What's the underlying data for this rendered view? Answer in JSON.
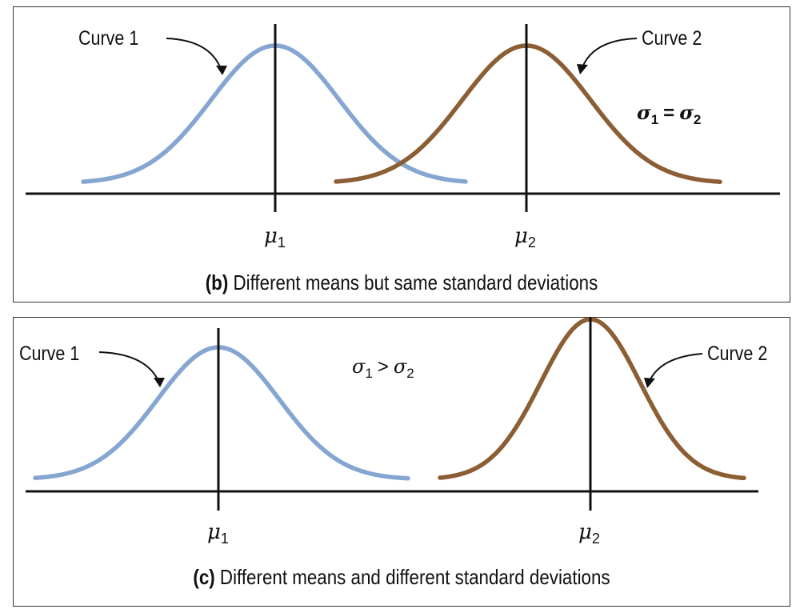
{
  "panel_b": {
    "curve1_label": "Curve 1",
    "curve2_label": "Curve 2",
    "mu1": {
      "symbol": "μ",
      "sub": "1"
    },
    "mu2": {
      "symbol": "μ",
      "sub": "2"
    },
    "relation": {
      "left": "σ",
      "left_sub": "1",
      "op": "=",
      "right": "σ",
      "right_sub": "2"
    },
    "caption_letter": "(b)",
    "caption_text": " Different means but same standard deviations"
  },
  "panel_c": {
    "curve1_label": "Curve 1",
    "curve2_label": "Curve 2",
    "mu1": {
      "symbol": "μ",
      "sub": "1"
    },
    "mu2": {
      "symbol": "μ",
      "sub": "2"
    },
    "relation": {
      "left": "σ",
      "left_sub": "1",
      "op": ">",
      "right": "σ",
      "right_sub": "2"
    },
    "caption_letter": "(c)",
    "caption_text": " Different means and different standard deviations"
  },
  "colors": {
    "curve1": "#86a6d2",
    "curve2": "#8b5e34",
    "axis": "#111111",
    "border": "#333333"
  }
}
